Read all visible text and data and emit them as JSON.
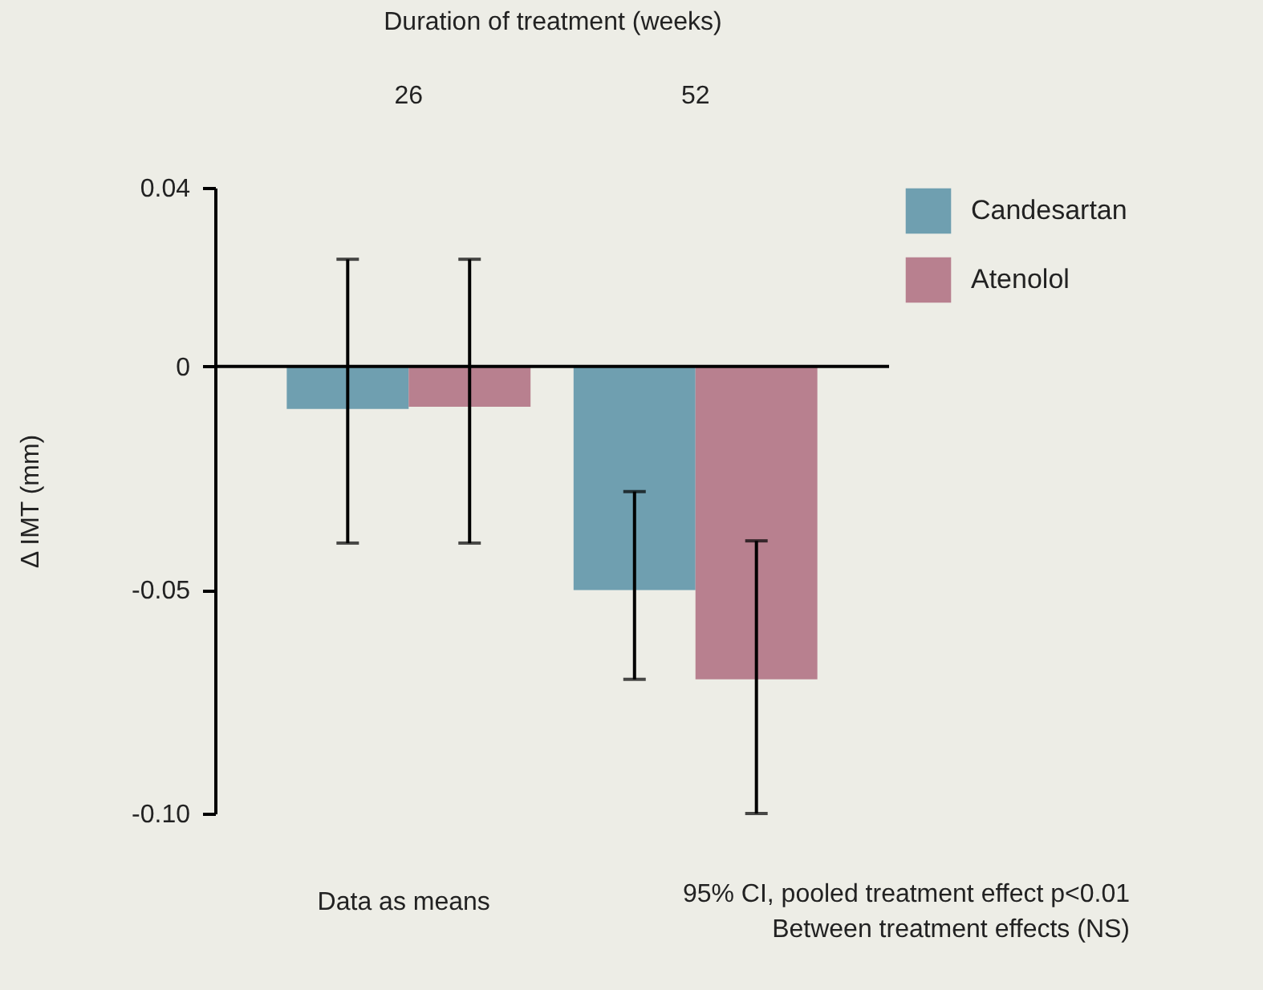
{
  "chart_data": {
    "type": "bar",
    "xlabel": "Duration of treatment (weeks)",
    "ylabel": "Δ IMT (mm)",
    "categories": [
      "26",
      "52"
    ],
    "series": [
      {
        "name": "Candesartan",
        "color": "#6f9fb0",
        "values": [
          -0.0095,
          -0.05
        ],
        "errors": [
          [
            -0.0395,
            0.024
          ],
          [
            -0.07,
            -0.028
          ]
        ]
      },
      {
        "name": "Atenolol",
        "color": "#b8808f",
        "values": [
          -0.009,
          -0.07
        ],
        "errors": [
          [
            -0.0395,
            0.024
          ],
          [
            -0.1,
            -0.039
          ]
        ]
      }
    ],
    "ylim": [
      -0.1,
      0.04
    ],
    "yticks": [
      0.04,
      0,
      -0.05,
      {
        "value": -0.1,
        "label": "-0.10"
      }
    ],
    "ref_lines": [
      {
        "axis": "y",
        "value": 0
      }
    ],
    "legend": "right",
    "annotations": [
      "Data as means",
      "95% CI, pooled treatment effect p<0.01",
      "Between treatment effects (NS)"
    ]
  }
}
